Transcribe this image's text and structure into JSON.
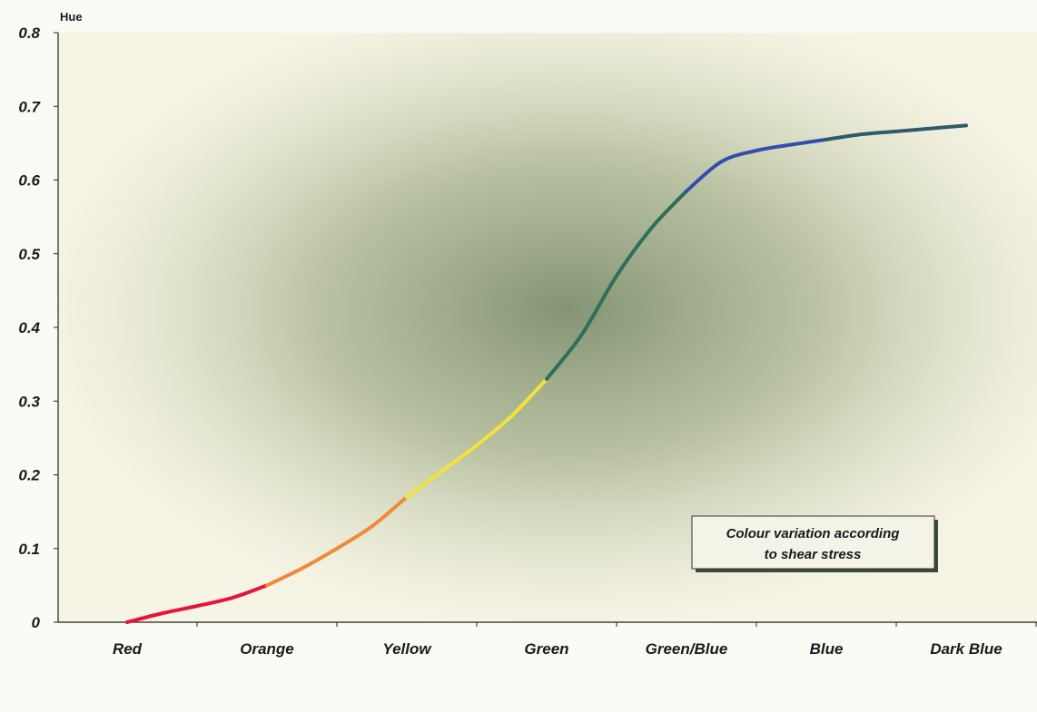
{
  "chart_data": {
    "type": "line",
    "ylabel": "Hue",
    "ylim": [
      0,
      0.8
    ],
    "yticks": [
      "0",
      "0.1",
      "0.2",
      "0.3",
      "0.4",
      "0.5",
      "0.6",
      "0.7",
      "0.8"
    ],
    "categories": [
      "Red",
      "Orange",
      "Yellow",
      "Green",
      "Green/Blue",
      "Blue",
      "Dark Blue"
    ],
    "grid": false,
    "annotation": {
      "line1": "Colour variation according",
      "line2": "to shear stress",
      "placement": "bottom-right"
    },
    "series": [
      {
        "segments": [
          {
            "color": "#e8123a",
            "points": [
              [
                0,
                0.0
              ],
              [
                0.25,
                0.012
              ],
              [
                0.5,
                0.022
              ],
              [
                0.75,
                0.033
              ],
              [
                1.0,
                0.05
              ]
            ]
          },
          {
            "color": "#f08a3a",
            "points": [
              [
                1.0,
                0.05
              ],
              [
                1.25,
                0.073
              ],
              [
                1.5,
                0.1
              ],
              [
                1.75,
                0.13
              ],
              [
                2.0,
                0.17
              ]
            ]
          },
          {
            "color": "#f2e23a",
            "points": [
              [
                2.0,
                0.17
              ],
              [
                2.25,
                0.205
              ],
              [
                2.5,
                0.24
              ],
              [
                2.75,
                0.28
              ],
              [
                3.0,
                0.33
              ]
            ]
          },
          {
            "color": "#2f6e58",
            "points": [
              [
                3.0,
                0.33
              ],
              [
                3.25,
                0.39
              ],
              [
                3.5,
                0.47
              ],
              [
                3.75,
                0.535
              ],
              [
                4.0,
                0.585
              ]
            ]
          },
          {
            "color": "#2f4fb0",
            "points": [
              [
                4.0,
                0.585
              ],
              [
                4.25,
                0.625
              ],
              [
                4.5,
                0.64
              ],
              [
                4.75,
                0.648
              ],
              [
                5.0,
                0.655
              ]
            ]
          },
          {
            "color": "#2f5a6a",
            "points": [
              [
                5.0,
                0.655
              ],
              [
                5.25,
                0.662
              ],
              [
                5.5,
                0.666
              ],
              [
                5.75,
                0.67
              ],
              [
                6.0,
                0.674
              ]
            ]
          }
        ]
      }
    ]
  }
}
